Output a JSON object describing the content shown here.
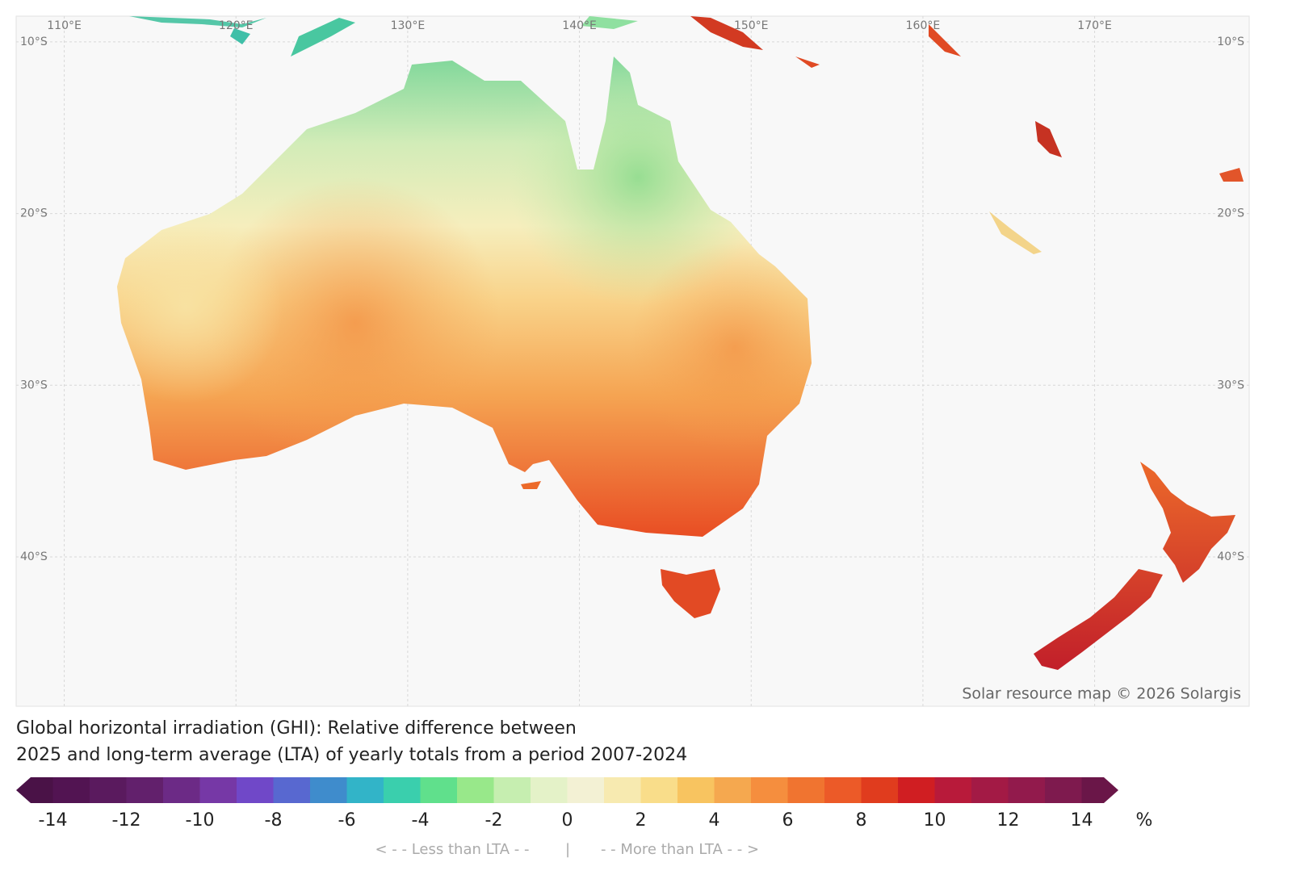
{
  "map": {
    "lon_range": [
      107.2,
      179.0
    ],
    "lat_range": [
      8.5,
      48.7
    ],
    "longitudes": [
      {
        "value": 110,
        "label": "110°E"
      },
      {
        "value": 120,
        "label": "120°E"
      },
      {
        "value": 130,
        "label": "130°E"
      },
      {
        "value": 140,
        "label": "140°E"
      },
      {
        "value": 150,
        "label": "150°E"
      },
      {
        "value": 160,
        "label": "160°E"
      },
      {
        "value": 170,
        "label": "170°E"
      }
    ],
    "latitudes": [
      {
        "value": 10,
        "label": "10°S"
      },
      {
        "value": 20,
        "label": "20°S"
      },
      {
        "value": 30,
        "label": "30°S"
      },
      {
        "value": 40,
        "label": "40°S"
      }
    ],
    "attribution": "Solar resource map © 2026 Solargis"
  },
  "legend": {
    "title": [
      "Global horizontal irradiation (GHI): Relative difference between",
      "2025 and long-term average (LTA) of yearly totals from a period 2007-2024"
    ],
    "range": [
      -15,
      15
    ],
    "colors": [
      "#4a1247",
      "#521452",
      "#5a1a5e",
      "#62206c",
      "#6c2a86",
      "#7638a6",
      "#7048c8",
      "#5868d0",
      "#3f8ccc",
      "#32b4c8",
      "#3acfad",
      "#60e08c",
      "#98e88a",
      "#c6eeb0",
      "#e4f2c8",
      "#f3f1d4",
      "#f7eab0",
      "#f9dd8a",
      "#f8c460",
      "#f5a84f",
      "#f58e3e",
      "#f07430",
      "#ec5a28",
      "#e03c1e",
      "#d01e22",
      "#b81a3a",
      "#a31a45",
      "#921a4c",
      "#7e1a4e",
      "#6a1648"
    ],
    "ticks": [
      -14,
      -12,
      -10,
      -8,
      -6,
      -4,
      -2,
      0,
      2,
      4,
      6,
      8,
      10,
      12,
      14
    ],
    "unit": "%",
    "less": "< - -  Less than LTA  - -",
    "divider": "|",
    "more": "- -  More than LTA  - - >"
  }
}
